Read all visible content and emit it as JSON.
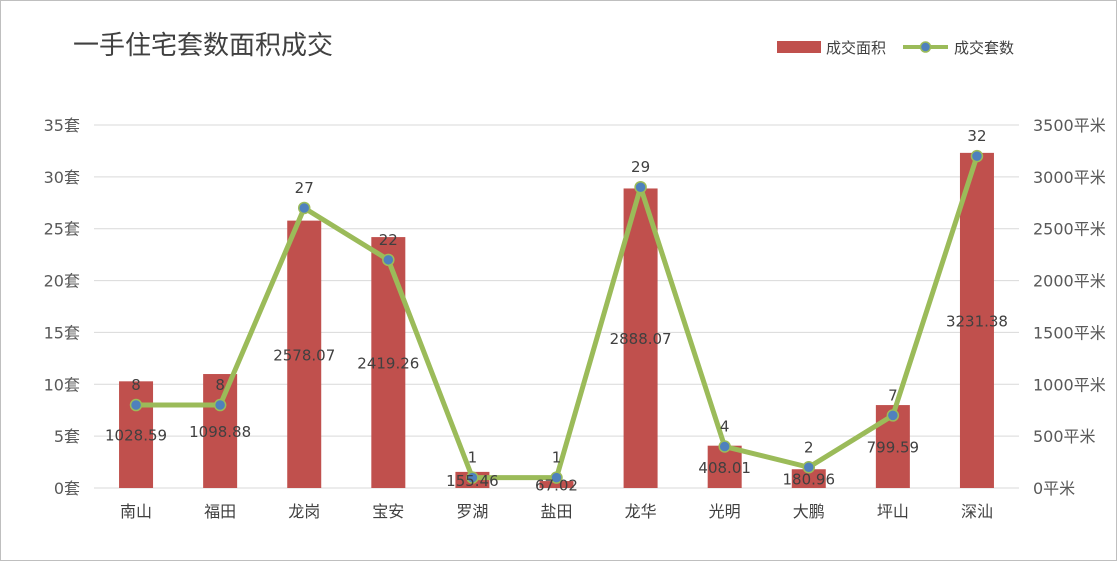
{
  "chart_data": {
    "type": "bar+line",
    "title": "一手住宅套数面积成交",
    "categories": [
      "南山",
      "福田",
      "龙岗",
      "宝安",
      "罗湖",
      "盐田",
      "龙华",
      "光明",
      "大鹏",
      "坪山",
      "深汕"
    ],
    "series": [
      {
        "name": "成交面积",
        "type": "bar",
        "axis": "right",
        "color": "#c0504d",
        "values": [
          1028.59,
          1098.88,
          2578.07,
          2419.26,
          155.46,
          67.02,
          2888.07,
          408.01,
          180.96,
          799.59,
          3231.38
        ],
        "labels": [
          "1028.59",
          "1098.88",
          "2578.07",
          "2419.26",
          "155.46",
          "67.02",
          "2888.07",
          "408.01",
          "180.96",
          "799.59",
          "3231.38"
        ]
      },
      {
        "name": "成交套数",
        "type": "line",
        "axis": "left",
        "color": "#9bbb59",
        "marker_color": "#4f81bd",
        "values": [
          8,
          8,
          27,
          22,
          1,
          1,
          29,
          4,
          2,
          7,
          32
        ],
        "labels": [
          "8",
          "8",
          "27",
          "22",
          "1",
          "1",
          "29",
          "4",
          "2",
          "7",
          "32"
        ]
      }
    ],
    "y_left": {
      "ylim": [
        0,
        35
      ],
      "ticks": [
        0,
        5,
        10,
        15,
        20,
        25,
        30,
        35
      ],
      "tick_labels": [
        "0套",
        "5套",
        "10套",
        "15套",
        "20套",
        "25套",
        "30套",
        "35套"
      ]
    },
    "y_right": {
      "ylim": [
        0,
        3500
      ],
      "ticks": [
        0,
        500,
        1000,
        1500,
        2000,
        2500,
        3000,
        3500
      ],
      "tick_labels": [
        "0平米",
        "500平米",
        "1000平米",
        "1500平米",
        "2000平米",
        "2500平米",
        "3000平米",
        "3500平米"
      ]
    },
    "grid": true,
    "legend_position": "top-right"
  }
}
